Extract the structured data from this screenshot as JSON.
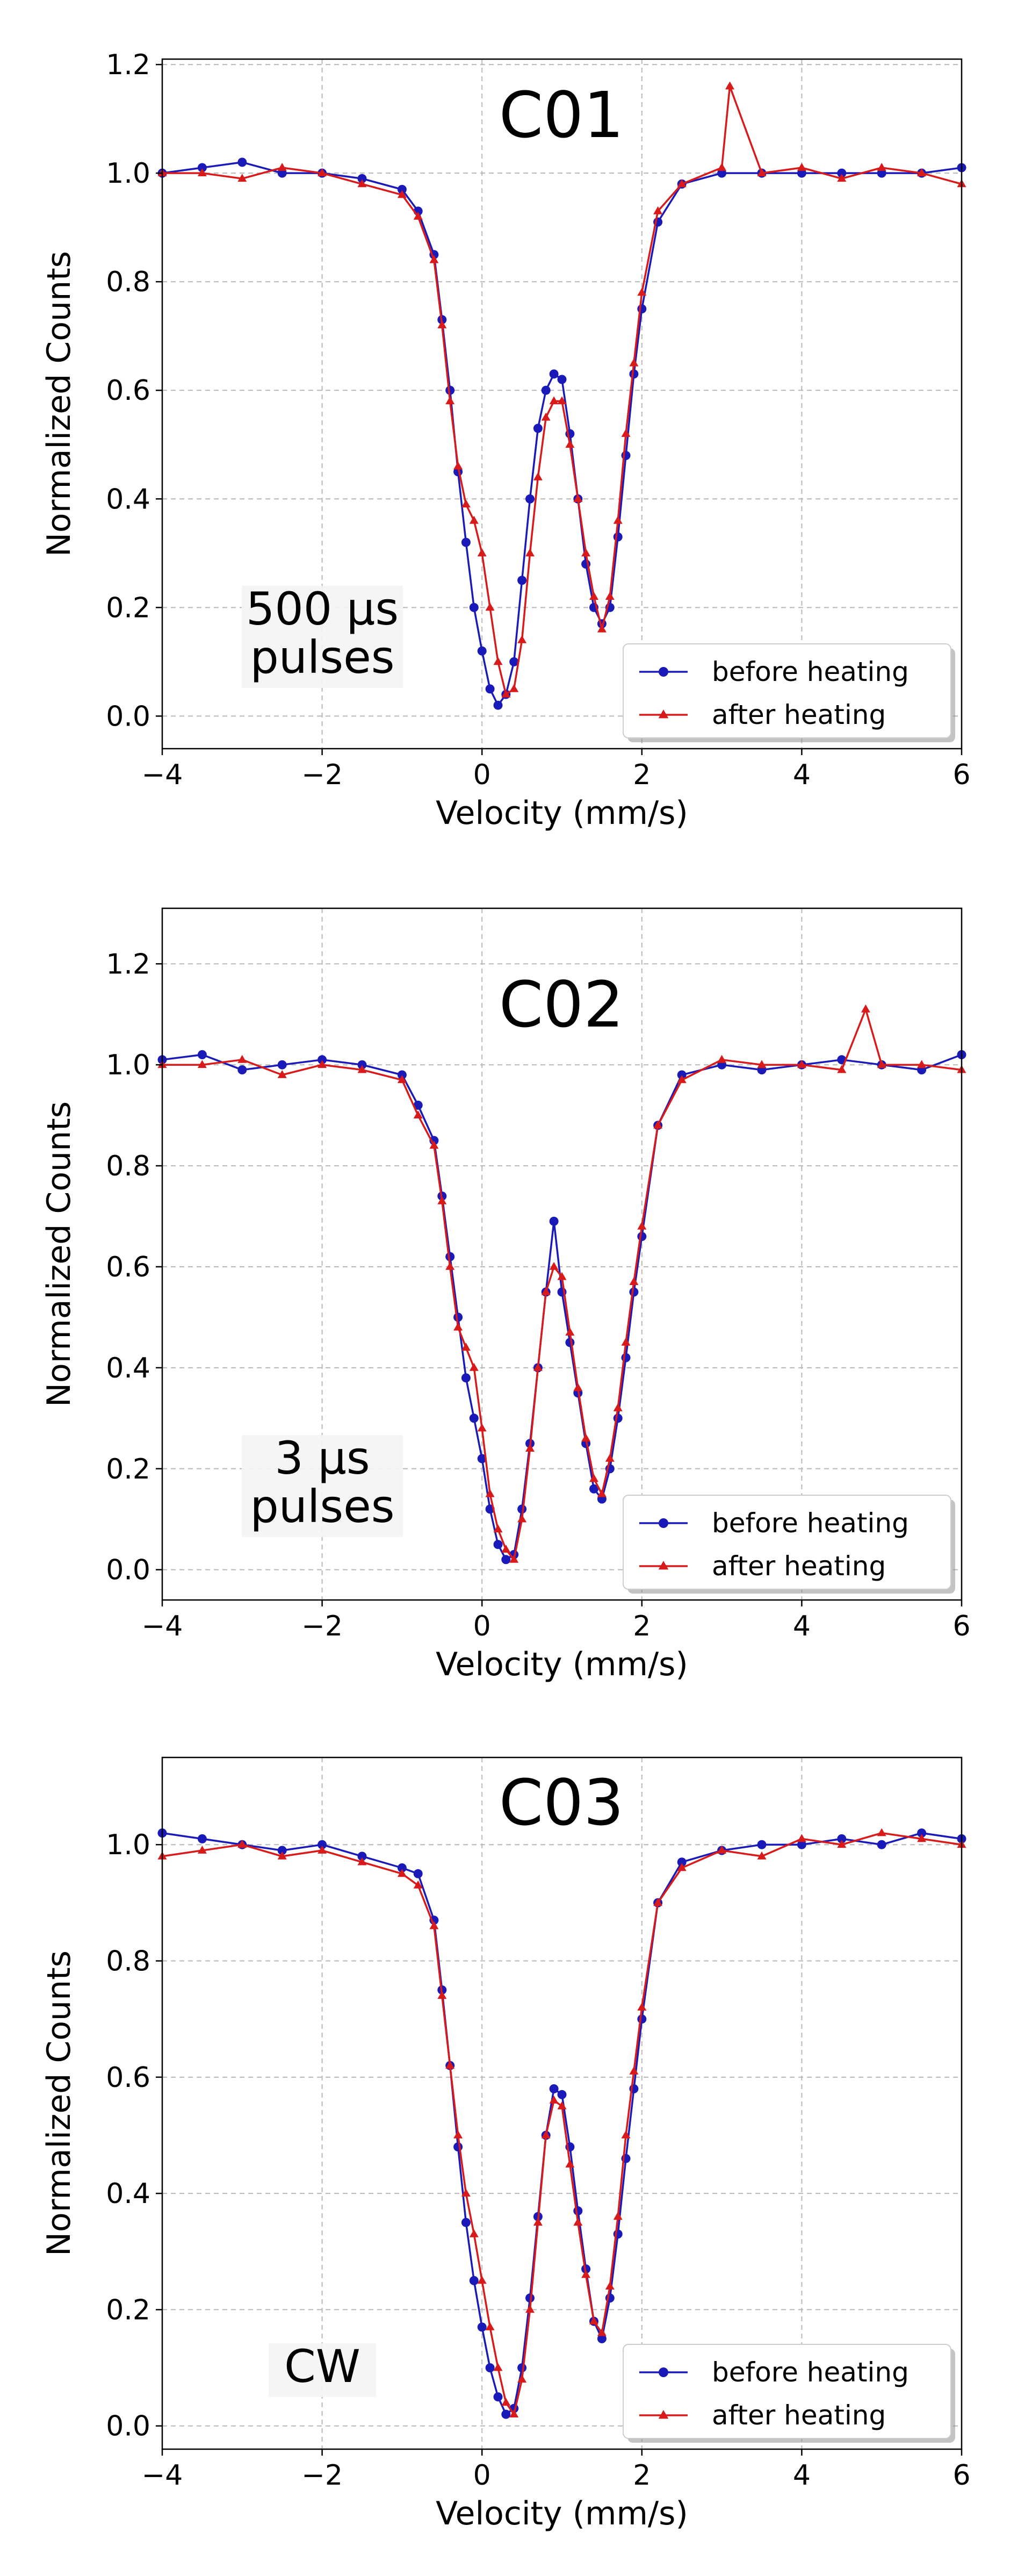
{
  "colors": {
    "before": "#1a1ab8",
    "after": "#d81a1a",
    "grid": "#b8b8b8",
    "axis": "#000000"
  },
  "legend": {
    "before_label": "before heating",
    "after_label": "after heating",
    "placement": "bottom-right"
  },
  "chart_data": [
    {
      "type": "line",
      "title": "C01",
      "annotation": [
        "500 μs",
        "pulses"
      ],
      "xlabel": "Velocity (mm/s)",
      "ylabel": "Normalized Counts",
      "xlim": [
        -4,
        6
      ],
      "ylim": [
        -0.06,
        1.21
      ],
      "xticks": [
        -4,
        -2,
        0,
        2,
        4,
        6
      ],
      "xtick_labels": [
        "−4",
        "−2",
        "0",
        "2",
        "4",
        "6"
      ],
      "yticks": [
        0.0,
        0.2,
        0.4,
        0.6,
        0.8,
        1.0,
        1.2
      ],
      "ytick_labels": [
        "0.0",
        "0.2",
        "0.4",
        "0.6",
        "0.8",
        "1.0",
        "1.2"
      ],
      "grid": true,
      "series": [
        {
          "name": "before heating",
          "marker": "circle",
          "x": [
            -4.0,
            -3.5,
            -3.0,
            -2.5,
            -2.0,
            -1.5,
            -1.0,
            -0.8,
            -0.6,
            -0.5,
            -0.4,
            -0.3,
            -0.2,
            -0.1,
            0.0,
            0.1,
            0.2,
            0.3,
            0.4,
            0.5,
            0.6,
            0.7,
            0.8,
            0.9,
            1.0,
            1.1,
            1.2,
            1.3,
            1.4,
            1.5,
            1.6,
            1.7,
            1.8,
            1.9,
            2.0,
            2.2,
            2.5,
            3.0,
            3.5,
            4.0,
            4.5,
            5.0,
            5.5,
            6.0
          ],
          "y": [
            1.0,
            1.01,
            1.02,
            1.0,
            1.0,
            0.99,
            0.97,
            0.93,
            0.85,
            0.73,
            0.6,
            0.45,
            0.32,
            0.2,
            0.12,
            0.05,
            0.02,
            0.04,
            0.1,
            0.25,
            0.4,
            0.53,
            0.6,
            0.63,
            0.62,
            0.52,
            0.4,
            0.28,
            0.2,
            0.17,
            0.2,
            0.33,
            0.48,
            0.63,
            0.75,
            0.91,
            0.98,
            1.0,
            1.0,
            1.0,
            1.0,
            1.0,
            1.0,
            1.01
          ]
        },
        {
          "name": "after heating",
          "marker": "triangle",
          "x": [
            -4.0,
            -3.5,
            -3.0,
            -2.5,
            -2.0,
            -1.5,
            -1.0,
            -0.8,
            -0.6,
            -0.5,
            -0.4,
            -0.3,
            -0.2,
            -0.1,
            0.0,
            0.1,
            0.2,
            0.3,
            0.4,
            0.5,
            0.6,
            0.7,
            0.8,
            0.9,
            1.0,
            1.1,
            1.2,
            1.3,
            1.4,
            1.5,
            1.6,
            1.7,
            1.8,
            1.9,
            2.0,
            2.2,
            2.5,
            3.0,
            3.1,
            3.5,
            4.0,
            4.5,
            5.0,
            5.5,
            6.0
          ],
          "y": [
            1.0,
            1.0,
            0.99,
            1.01,
            1.0,
            0.98,
            0.96,
            0.92,
            0.84,
            0.72,
            0.58,
            0.46,
            0.39,
            0.36,
            0.3,
            0.2,
            0.1,
            0.04,
            0.05,
            0.14,
            0.3,
            0.44,
            0.55,
            0.58,
            0.58,
            0.5,
            0.4,
            0.3,
            0.22,
            0.16,
            0.22,
            0.36,
            0.52,
            0.65,
            0.78,
            0.93,
            0.98,
            1.01,
            1.16,
            1.0,
            1.01,
            0.99,
            1.01,
            1.0,
            0.98
          ]
        }
      ]
    },
    {
      "type": "line",
      "title": "C02",
      "annotation": [
        "3 μs",
        "pulses"
      ],
      "xlabel": "Velocity (mm/s)",
      "ylabel": "Normalized Counts",
      "xlim": [
        -4,
        6
      ],
      "ylim": [
        -0.06,
        1.31
      ],
      "xticks": [
        -4,
        -2,
        0,
        2,
        4,
        6
      ],
      "xtick_labels": [
        "−4",
        "−2",
        "0",
        "2",
        "4",
        "6"
      ],
      "yticks": [
        0.0,
        0.2,
        0.4,
        0.6,
        0.8,
        1.0,
        1.2
      ],
      "ytick_labels": [
        "0.0",
        "0.2",
        "0.4",
        "0.6",
        "0.8",
        "1.0",
        "1.2"
      ],
      "grid": true,
      "series": [
        {
          "name": "before heating",
          "marker": "circle",
          "x": [
            -4.0,
            -3.5,
            -3.0,
            -2.5,
            -2.0,
            -1.5,
            -1.0,
            -0.8,
            -0.6,
            -0.5,
            -0.4,
            -0.3,
            -0.2,
            -0.1,
            0.0,
            0.1,
            0.2,
            0.3,
            0.4,
            0.5,
            0.6,
            0.7,
            0.8,
            0.9,
            1.0,
            1.1,
            1.2,
            1.3,
            1.4,
            1.5,
            1.6,
            1.7,
            1.8,
            1.9,
            2.0,
            2.2,
            2.5,
            3.0,
            3.5,
            4.0,
            4.5,
            5.0,
            5.5,
            6.0
          ],
          "y": [
            1.01,
            1.02,
            0.99,
            1.0,
            1.01,
            1.0,
            0.98,
            0.92,
            0.85,
            0.74,
            0.62,
            0.5,
            0.38,
            0.3,
            0.22,
            0.12,
            0.05,
            0.02,
            0.03,
            0.12,
            0.25,
            0.4,
            0.55,
            0.69,
            0.55,
            0.45,
            0.35,
            0.25,
            0.16,
            0.14,
            0.2,
            0.3,
            0.42,
            0.55,
            0.66,
            0.88,
            0.98,
            1.0,
            0.99,
            1.0,
            1.01,
            1.0,
            0.99,
            1.02
          ]
        },
        {
          "name": "after heating",
          "marker": "triangle",
          "x": [
            -4.0,
            -3.5,
            -3.0,
            -2.5,
            -2.0,
            -1.5,
            -1.0,
            -0.8,
            -0.6,
            -0.5,
            -0.4,
            -0.3,
            -0.2,
            -0.1,
            0.0,
            0.1,
            0.2,
            0.3,
            0.4,
            0.5,
            0.6,
            0.7,
            0.8,
            0.9,
            1.0,
            1.1,
            1.2,
            1.3,
            1.4,
            1.5,
            1.6,
            1.7,
            1.8,
            1.9,
            2.0,
            2.2,
            2.5,
            3.0,
            3.5,
            4.0,
            4.5,
            4.8,
            5.0,
            5.5,
            6.0
          ],
          "y": [
            1.0,
            1.0,
            1.01,
            0.98,
            1.0,
            0.99,
            0.97,
            0.9,
            0.84,
            0.73,
            0.6,
            0.48,
            0.44,
            0.4,
            0.28,
            0.15,
            0.08,
            0.04,
            0.02,
            0.1,
            0.24,
            0.4,
            0.55,
            0.6,
            0.58,
            0.47,
            0.36,
            0.26,
            0.18,
            0.15,
            0.22,
            0.32,
            0.45,
            0.57,
            0.68,
            0.88,
            0.97,
            1.01,
            1.0,
            1.0,
            0.99,
            1.11,
            1.0,
            1.0,
            0.99
          ]
        }
      ]
    },
    {
      "type": "line",
      "title": "C03",
      "annotation": [
        "CW"
      ],
      "xlabel": "Velocity (mm/s)",
      "ylabel": "Normalized Counts",
      "xlim": [
        -4,
        6
      ],
      "ylim": [
        -0.04,
        1.15
      ],
      "xticks": [
        -4,
        -2,
        0,
        2,
        4,
        6
      ],
      "xtick_labels": [
        "−4",
        "−2",
        "0",
        "2",
        "4",
        "6"
      ],
      "yticks": [
        0.0,
        0.2,
        0.4,
        0.6,
        0.8,
        1.0
      ],
      "ytick_labels": [
        "0.0",
        "0.2",
        "0.4",
        "0.6",
        "0.8",
        "1.0"
      ],
      "grid": true,
      "series": [
        {
          "name": "before heating",
          "marker": "circle",
          "x": [
            -4.0,
            -3.5,
            -3.0,
            -2.5,
            -2.0,
            -1.5,
            -1.0,
            -0.8,
            -0.6,
            -0.5,
            -0.4,
            -0.3,
            -0.2,
            -0.1,
            0.0,
            0.1,
            0.2,
            0.3,
            0.4,
            0.5,
            0.6,
            0.7,
            0.8,
            0.9,
            1.0,
            1.1,
            1.2,
            1.3,
            1.4,
            1.5,
            1.6,
            1.7,
            1.8,
            1.9,
            2.0,
            2.2,
            2.5,
            3.0,
            3.5,
            4.0,
            4.5,
            5.0,
            5.5,
            6.0
          ],
          "y": [
            1.02,
            1.01,
            1.0,
            0.99,
            1.0,
            0.98,
            0.96,
            0.95,
            0.87,
            0.75,
            0.62,
            0.48,
            0.35,
            0.25,
            0.17,
            0.1,
            0.05,
            0.02,
            0.03,
            0.1,
            0.22,
            0.36,
            0.5,
            0.58,
            0.57,
            0.48,
            0.37,
            0.27,
            0.18,
            0.15,
            0.22,
            0.33,
            0.46,
            0.58,
            0.7,
            0.9,
            0.97,
            0.99,
            1.0,
            1.0,
            1.01,
            1.0,
            1.02,
            1.01
          ]
        },
        {
          "name": "after heating",
          "marker": "triangle",
          "x": [
            -4.0,
            -3.5,
            -3.0,
            -2.5,
            -2.0,
            -1.5,
            -1.0,
            -0.8,
            -0.6,
            -0.5,
            -0.4,
            -0.3,
            -0.2,
            -0.1,
            0.0,
            0.1,
            0.2,
            0.3,
            0.4,
            0.5,
            0.6,
            0.7,
            0.8,
            0.9,
            1.0,
            1.1,
            1.2,
            1.3,
            1.4,
            1.5,
            1.6,
            1.7,
            1.8,
            1.9,
            2.0,
            2.2,
            2.5,
            3.0,
            3.5,
            4.0,
            4.5,
            5.0,
            5.5,
            6.0
          ],
          "y": [
            0.98,
            0.99,
            1.0,
            0.98,
            0.99,
            0.97,
            0.95,
            0.93,
            0.86,
            0.74,
            0.62,
            0.5,
            0.4,
            0.33,
            0.25,
            0.17,
            0.1,
            0.04,
            0.02,
            0.08,
            0.2,
            0.35,
            0.5,
            0.56,
            0.55,
            0.45,
            0.35,
            0.26,
            0.18,
            0.16,
            0.24,
            0.36,
            0.5,
            0.61,
            0.72,
            0.9,
            0.96,
            0.99,
            0.98,
            1.01,
            1.0,
            1.02,
            1.01,
            1.0
          ]
        }
      ]
    }
  ]
}
